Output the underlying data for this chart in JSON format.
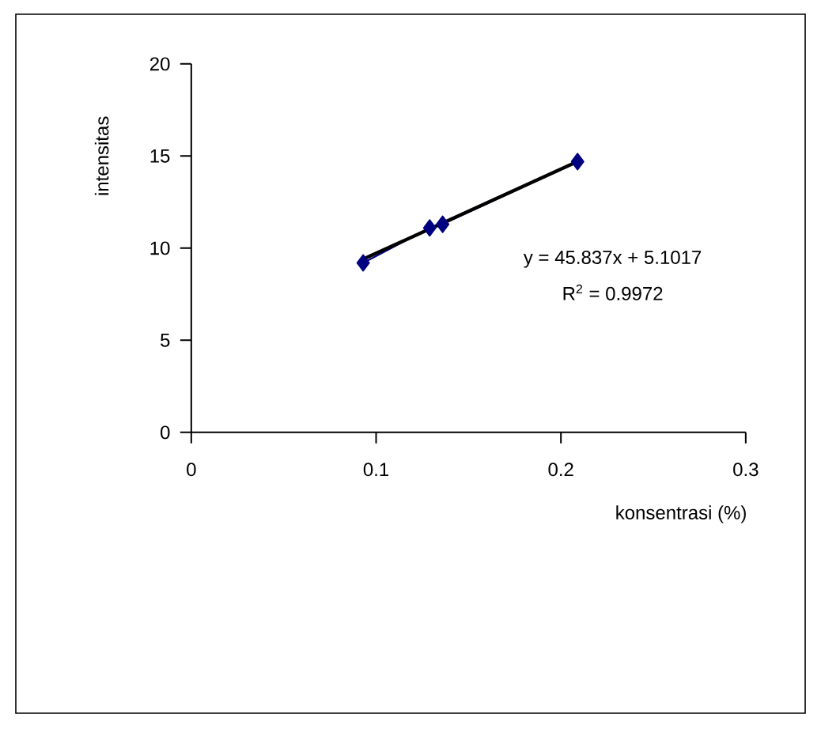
{
  "chart_data": {
    "type": "line",
    "xlabel": "konsentrasi (%)",
    "ylabel": "intensitas",
    "xlim": [
      0,
      0.3
    ],
    "xticks": [
      0,
      0.1,
      0.2,
      0.3
    ],
    "ylim": [
      0,
      20
    ],
    "yticks": [
      0,
      5,
      10,
      15,
      20
    ],
    "grid": false,
    "series": [
      {
        "marker": "diamond",
        "color": "#000080",
        "x": [
          0.093,
          0.129,
          0.136,
          0.209
        ],
        "values": [
          9.2,
          11.1,
          11.3,
          14.7
        ]
      },
      {
        "marker": "none",
        "color": "#000000",
        "x": [
          0.093,
          0.209
        ],
        "values": [
          9.4,
          14.7
        ]
      }
    ],
    "annotations": [
      "y = 45.837x + 5.1017",
      "R$^{2}$ = 0.9972"
    ]
  }
}
